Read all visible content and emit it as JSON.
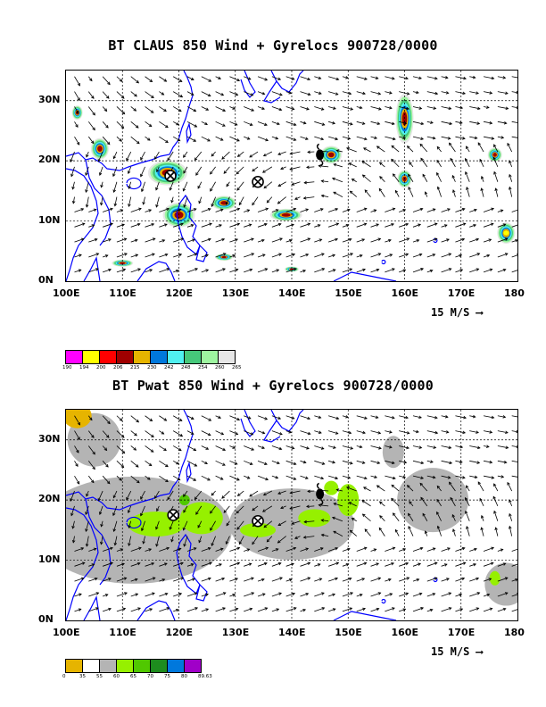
{
  "panels": [
    {
      "title": "BT CLAUS 850 Wind + Gyrelocs 900728/0000",
      "x_ticks": [
        "100E",
        "110E",
        "120E",
        "130E",
        "140E",
        "150E",
        "160E",
        "170E",
        "180"
      ],
      "y_ticks": [
        "0N",
        "10N",
        "20N",
        "30N"
      ],
      "ref_vector": "15 M/S",
      "legend": {
        "colors": [
          "#ff00ff",
          "#ffff00",
          "#ff0000",
          "#a00000",
          "#e6b400",
          "#0078dc",
          "#50f0f0",
          "#46c87a",
          "#9ef5a0",
          "#e6e6e6"
        ],
        "labels": [
          "190",
          "194",
          "200",
          "206",
          "215",
          "230",
          "242",
          "248",
          "254",
          "260",
          "265"
        ]
      },
      "gyre_markers": [
        {
          "type": "circled-x",
          "lon": 118.5,
          "lat": 17.5
        },
        {
          "type": "circled-x",
          "lon": 134.0,
          "lat": 16.5
        },
        {
          "type": "cyclone",
          "lon": 145.0,
          "lat": 21.0
        }
      ]
    },
    {
      "title": "BT Pwat 850 Wind + Gyrelocs 900728/0000",
      "x_ticks": [
        "100E",
        "110E",
        "120E",
        "130E",
        "140E",
        "150E",
        "160E",
        "170E",
        "180"
      ],
      "y_ticks": [
        "0N",
        "10N",
        "20N",
        "30N"
      ],
      "ref_vector": "15 M/S",
      "legend": {
        "colors": [
          "#e6b400",
          "#ffffff",
          "#b4b4b4",
          "#96f000",
          "#50c800",
          "#1e8c1e",
          "#0078dc",
          "#a000c8"
        ],
        "labels": [
          "0",
          "35",
          "55",
          "60",
          "65",
          "70",
          "75",
          "80",
          "89.63"
        ]
      },
      "gyre_markers": [
        {
          "type": "circled-x",
          "lon": 119.0,
          "lat": 17.5
        },
        {
          "type": "circled-x",
          "lon": 134.0,
          "lat": 16.5
        },
        {
          "type": "cyclone",
          "lon": 145.0,
          "lat": 21.0
        }
      ]
    }
  ]
}
